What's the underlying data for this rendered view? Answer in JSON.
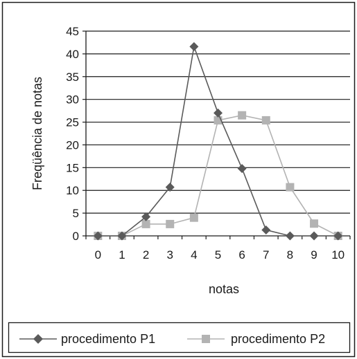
{
  "chart_data": {
    "type": "line",
    "title": "",
    "xlabel": "notas",
    "ylabel": "Freqüência de notas",
    "x": [
      0,
      1,
      2,
      3,
      4,
      5,
      6,
      7,
      8,
      9,
      10
    ],
    "ylim": [
      0,
      45
    ],
    "yticks": [
      0,
      5,
      10,
      15,
      20,
      25,
      30,
      35,
      40,
      45
    ],
    "grid": "horizontal",
    "legend_position": "bottom",
    "series": [
      {
        "name": "procedimento P1",
        "marker": "diamond",
        "color": "#5a5a5a",
        "values": [
          0,
          0,
          4.2,
          10.7,
          41.6,
          27,
          14.8,
          1.3,
          0,
          0,
          0
        ]
      },
      {
        "name": "procedimento P2",
        "marker": "square",
        "color": "#b3b3b3",
        "values": [
          0,
          0,
          2.6,
          2.6,
          4,
          25.4,
          26.5,
          25.4,
          10.7,
          2.7,
          0
        ]
      }
    ]
  }
}
